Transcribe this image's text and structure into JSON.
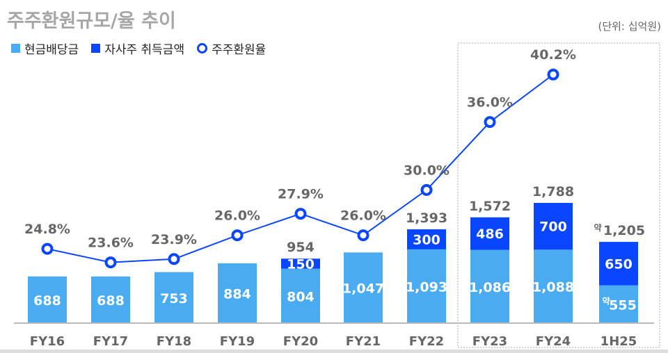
{
  "title": "주주환원규모/율 추이",
  "unit": "(단위: 십억원)",
  "colors": {
    "dividend": "#4aabf0",
    "buyback": "#0a45ff",
    "rate": "#0a45ff",
    "label": "#666666"
  },
  "chart_data": {
    "type": "bar",
    "stacked": true,
    "categories": [
      "FY16",
      "FY17",
      "FY18",
      "FY19",
      "FY20",
      "FY21",
      "FY22",
      "FY23",
      "FY24",
      "1H25"
    ],
    "series": [
      {
        "name": "현금배당금",
        "values": [
          688,
          688,
          753,
          884,
          804,
          1047,
          1093,
          1086,
          1088,
          555
        ],
        "labels": [
          "688",
          "688",
          "753",
          "884",
          "804",
          "1,047",
          "1,093",
          "1,086",
          "1,088",
          "555"
        ]
      },
      {
        "name": "자사주 취득금액",
        "values": [
          0,
          0,
          0,
          0,
          150,
          0,
          300,
          486,
          700,
          650
        ],
        "labels": [
          "",
          "",
          "",
          "",
          "150",
          "",
          "300",
          "486",
          "700",
          "650"
        ]
      },
      {
        "name": "주주환원율",
        "type": "line",
        "values": [
          24.8,
          23.6,
          23.9,
          26.0,
          27.9,
          26.0,
          30.0,
          36.0,
          40.2,
          null
        ],
        "labels": [
          "24.8%",
          "23.6%",
          "23.9%",
          "26.0%",
          "27.9%",
          "26.0%",
          "30.0%",
          "36.0%",
          "40.2%",
          ""
        ]
      }
    ],
    "totals": [
      "",
      "",
      "",
      "",
      "954",
      "",
      "1,393",
      "1,572",
      "1,788",
      "1,205"
    ],
    "approx_prefix": "약",
    "approx_categories": [
      "1H25"
    ],
    "ylim": [
      0,
      4200
    ],
    "rate_ylim": [
      18.3,
      43.1
    ],
    "highlight_categories": [
      "FY23",
      "FY24",
      "1H25"
    ],
    "legend": "top-left",
    "grid": false
  }
}
